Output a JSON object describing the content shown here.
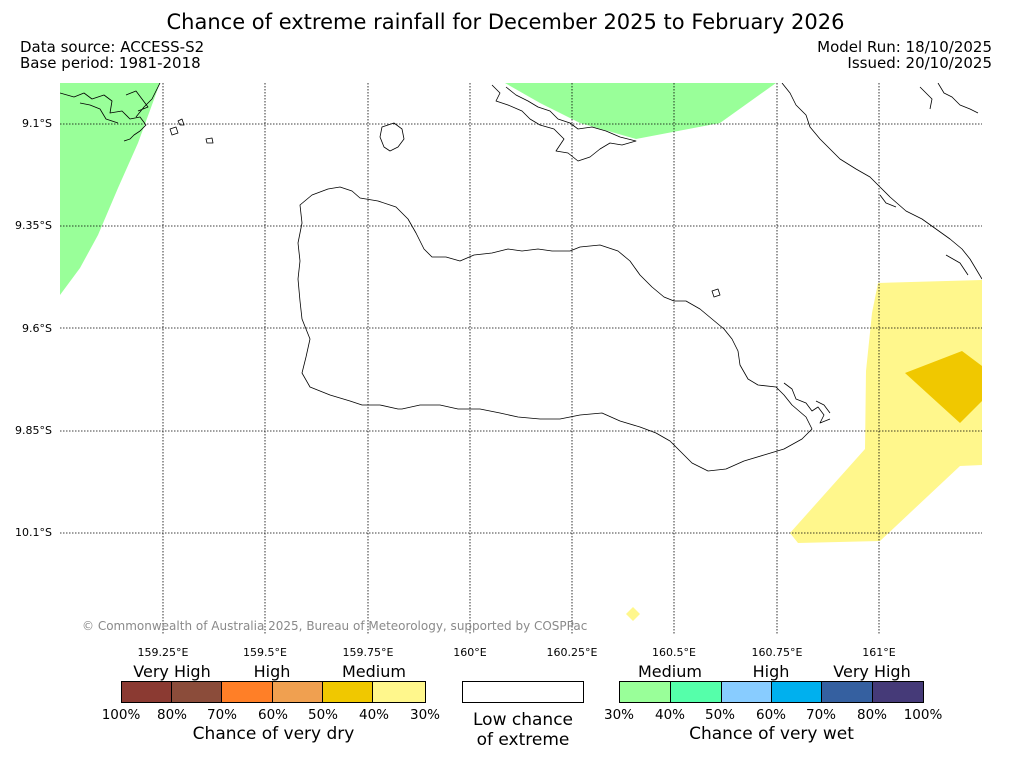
{
  "title": "Chance of extreme rainfall for December 2025 to February 2026",
  "data_source": "Data source: ACCESS-S2",
  "base_period": "Base period: 1981-2018",
  "model_run": "Model Run: 18/10/2025",
  "issued": "Issued: 20/10/2025",
  "copyright": "© Commonwealth of Australia 2025, Bureau of Meteorology, supported by COSPPac",
  "latitude_labels": [
    "9.1°S",
    "9.35°S",
    "9.6°S",
    "9.85°S",
    "10.1°S"
  ],
  "longitude_labels": [
    "159.25°E",
    "159.5°E",
    "159.75°E",
    "160°E",
    "160.25°E",
    "160.5°E",
    "160.75°E",
    "161°E"
  ],
  "map_extent": {
    "lon_min": 159.0,
    "lon_max": 161.25,
    "lat_min": -10.35,
    "lat_max": -9.0
  },
  "colors": {
    "map_outline": "#000000",
    "wet_medium_30_40": "#99ff99",
    "dry_medium_30_40": "#fff78c",
    "dry_medium_40_50": "#f0c800",
    "grid": "#000000"
  },
  "dry_legend": {
    "categories": [
      "Very High",
      "High",
      "Medium"
    ],
    "percent_labels": [
      "100%",
      "80%",
      "70%",
      "60%",
      "50%",
      "40%",
      "30%"
    ],
    "colors": [
      "#8b3a32",
      "#8b4c3a",
      "#ff7f27",
      "#f0a050",
      "#f0c800",
      "#fff78c"
    ],
    "caption": "Chance of very dry"
  },
  "low_legend": {
    "caption_line1": "Low chance",
    "caption_line2": "of extreme"
  },
  "wet_legend": {
    "categories": [
      "Medium",
      "High",
      "Very High"
    ],
    "percent_labels": [
      "30%",
      "40%",
      "50%",
      "60%",
      "70%",
      "80%",
      "100%"
    ],
    "colors": [
      "#99ff99",
      "#55ffaa",
      "#88ccff",
      "#00b0ee",
      "#3560a0",
      "#453a78"
    ],
    "caption": "Chance of very wet"
  }
}
